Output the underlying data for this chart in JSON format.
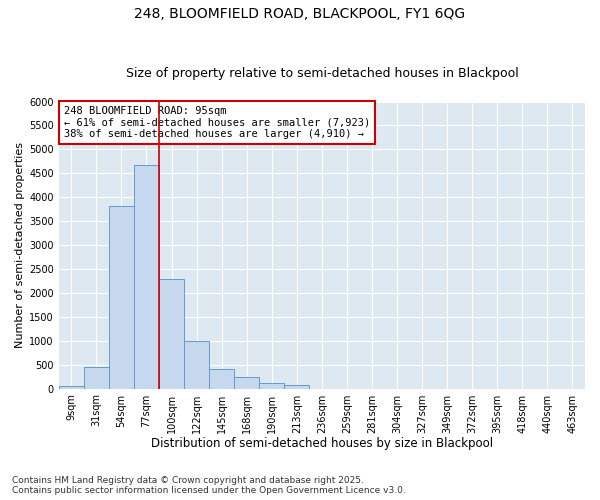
{
  "title1": "248, BLOOMFIELD ROAD, BLACKPOOL, FY1 6QG",
  "title2": "Size of property relative to semi-detached houses in Blackpool",
  "xlabel": "Distribution of semi-detached houses by size in Blackpool",
  "ylabel": "Number of semi-detached properties",
  "categories": [
    "9sqm",
    "31sqm",
    "54sqm",
    "77sqm",
    "100sqm",
    "122sqm",
    "145sqm",
    "168sqm",
    "190sqm",
    "213sqm",
    "236sqm",
    "259sqm",
    "281sqm",
    "304sqm",
    "327sqm",
    "349sqm",
    "372sqm",
    "395sqm",
    "418sqm",
    "440sqm",
    "463sqm"
  ],
  "values": [
    50,
    450,
    3820,
    4680,
    2300,
    1000,
    400,
    240,
    110,
    80,
    0,
    0,
    0,
    0,
    0,
    0,
    0,
    0,
    0,
    0,
    0
  ],
  "bar_color": "#c5d8ed",
  "bar_edge_color": "#6699cc",
  "vline_position": 4,
  "vline_color": "#cc0000",
  "annotation_text": "248 BLOOMFIELD ROAD: 95sqm\n← 61% of semi-detached houses are smaller (7,923)\n38% of semi-detached houses are larger (4,910) →",
  "annotation_box_facecolor": "#ffffff",
  "annotation_box_edgecolor": "#cc0000",
  "ylim": [
    0,
    6000
  ],
  "yticks": [
    0,
    500,
    1000,
    1500,
    2000,
    2500,
    3000,
    3500,
    4000,
    4500,
    5000,
    5500,
    6000
  ],
  "axes_facecolor": "#dde8f0",
  "figure_facecolor": "#ffffff",
  "grid_color": "#ffffff",
  "footer": "Contains HM Land Registry data © Crown copyright and database right 2025.\nContains public sector information licensed under the Open Government Licence v3.0.",
  "title1_fontsize": 10,
  "title2_fontsize": 9,
  "xlabel_fontsize": 8.5,
  "ylabel_fontsize": 8,
  "tick_fontsize": 7,
  "annotation_fontsize": 7.5,
  "footer_fontsize": 6.5
}
